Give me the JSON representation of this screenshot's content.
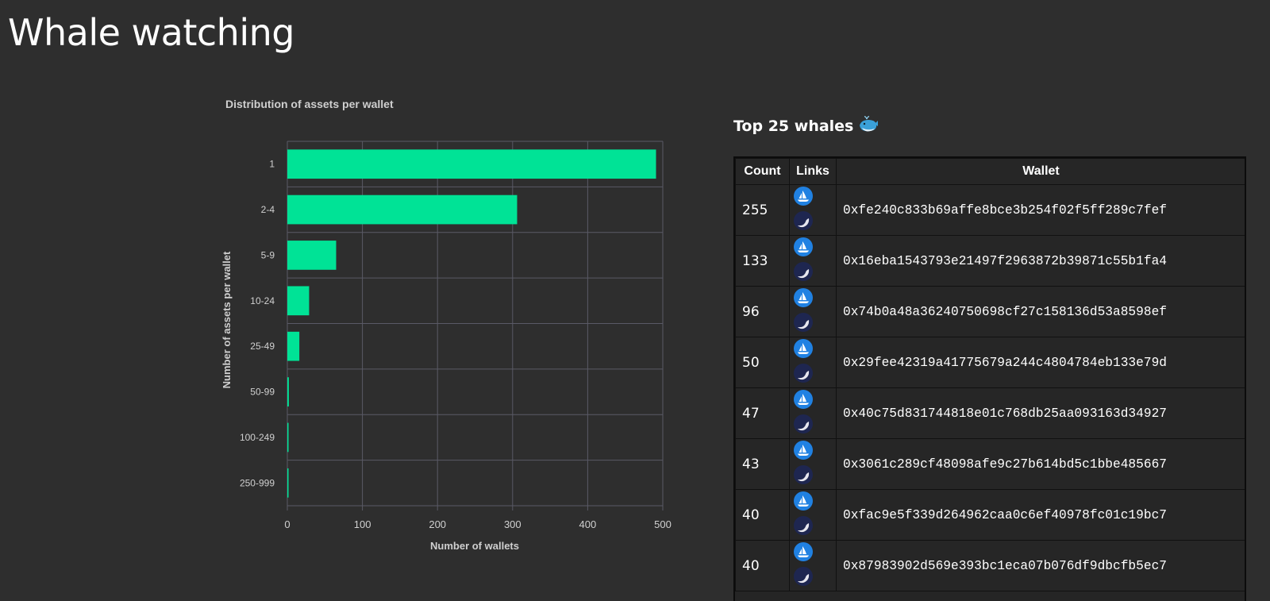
{
  "page": {
    "title": "Whale watching"
  },
  "colors": {
    "background": "#2e2e2e",
    "bar": "#00e396",
    "grid": "#5a5a66",
    "opensea_blue": "#2081e2"
  },
  "chart_data": {
    "type": "bar",
    "orientation": "horizontal",
    "title": "Distribution of assets per wallet",
    "xlabel": "Number of wallets",
    "ylabel": "Number of assets per wallet",
    "categories": [
      "1",
      "2-4",
      "5-9",
      "10-24",
      "25-49",
      "50-99",
      "100-249",
      "250-999"
    ],
    "values": [
      491,
      306,
      65,
      29,
      16,
      2,
      1,
      1
    ],
    "xlim": [
      0,
      500
    ],
    "xticks": [
      "0",
      "100",
      "200",
      "300",
      "400",
      "500"
    ],
    "grid": true,
    "legend": "none"
  },
  "whales": {
    "title": "Top 25 whales",
    "title_icon": "whale-emoji-icon",
    "columns": [
      "Count",
      "Links",
      "Wallet"
    ],
    "rows": [
      {
        "count": "255",
        "links": [
          "opensea-icon",
          "moon-icon"
        ],
        "wallet": "0xfe240c833b69affe8bce3b254f02f5ff289c7fef"
      },
      {
        "count": "133",
        "links": [
          "opensea-icon",
          "moon-icon"
        ],
        "wallet": "0x16eba1543793e21497f2963872b39871c55b1fa4"
      },
      {
        "count": "96",
        "links": [
          "opensea-icon",
          "moon-icon"
        ],
        "wallet": "0x74b0a48a36240750698cf27c158136d53a8598ef"
      },
      {
        "count": "50",
        "links": [
          "opensea-icon",
          "moon-icon"
        ],
        "wallet": "0x29fee42319a41775679a244c4804784eb133e79d"
      },
      {
        "count": "47",
        "links": [
          "opensea-icon",
          "moon-icon"
        ],
        "wallet": "0x40c75d831744818e01c768db25aa093163d34927"
      },
      {
        "count": "43",
        "links": [
          "opensea-icon",
          "moon-icon"
        ],
        "wallet": "0x3061c289cf48098afe9c27b614bd5c1bbe485667"
      },
      {
        "count": "40",
        "links": [
          "opensea-icon",
          "moon-icon"
        ],
        "wallet": "0xfac9e5f339d264962caa0c6ef40978fc01c19bc7"
      },
      {
        "count": "40",
        "links": [
          "opensea-icon",
          "moon-icon"
        ],
        "wallet": "0x87983902d569e393bc1eca07b076df9dbcfb5ec7"
      }
    ]
  }
}
